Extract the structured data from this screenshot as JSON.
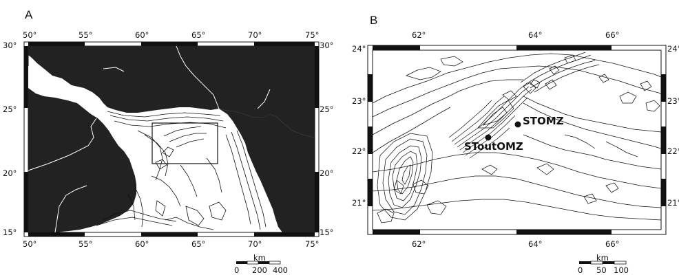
{
  "panel_a": {
    "letter": "A",
    "lon_labels": [
      "50°",
      "55°",
      "60°",
      "65°",
      "70°",
      "75°"
    ],
    "lat_labels": [
      "15°",
      "20°",
      "25°",
      "30°"
    ],
    "scalebar": {
      "unit": "km",
      "labels": [
        "0",
        "200",
        "400"
      ]
    }
  },
  "panel_b": {
    "letter": "B",
    "lon_labels": [
      "62°",
      "64°",
      "66°"
    ],
    "lat_labels": [
      "21°",
      "22°",
      "23°",
      "24°"
    ],
    "stations": [
      {
        "name": "STOMZ"
      },
      {
        "name": "SToutOMZ"
      }
    ],
    "scalebar": {
      "unit": "km",
      "labels": [
        "0",
        "50",
        "100"
      ]
    }
  },
  "colors": {
    "land": "#222222",
    "ink": "#111111",
    "sea": "#ffffff"
  }
}
